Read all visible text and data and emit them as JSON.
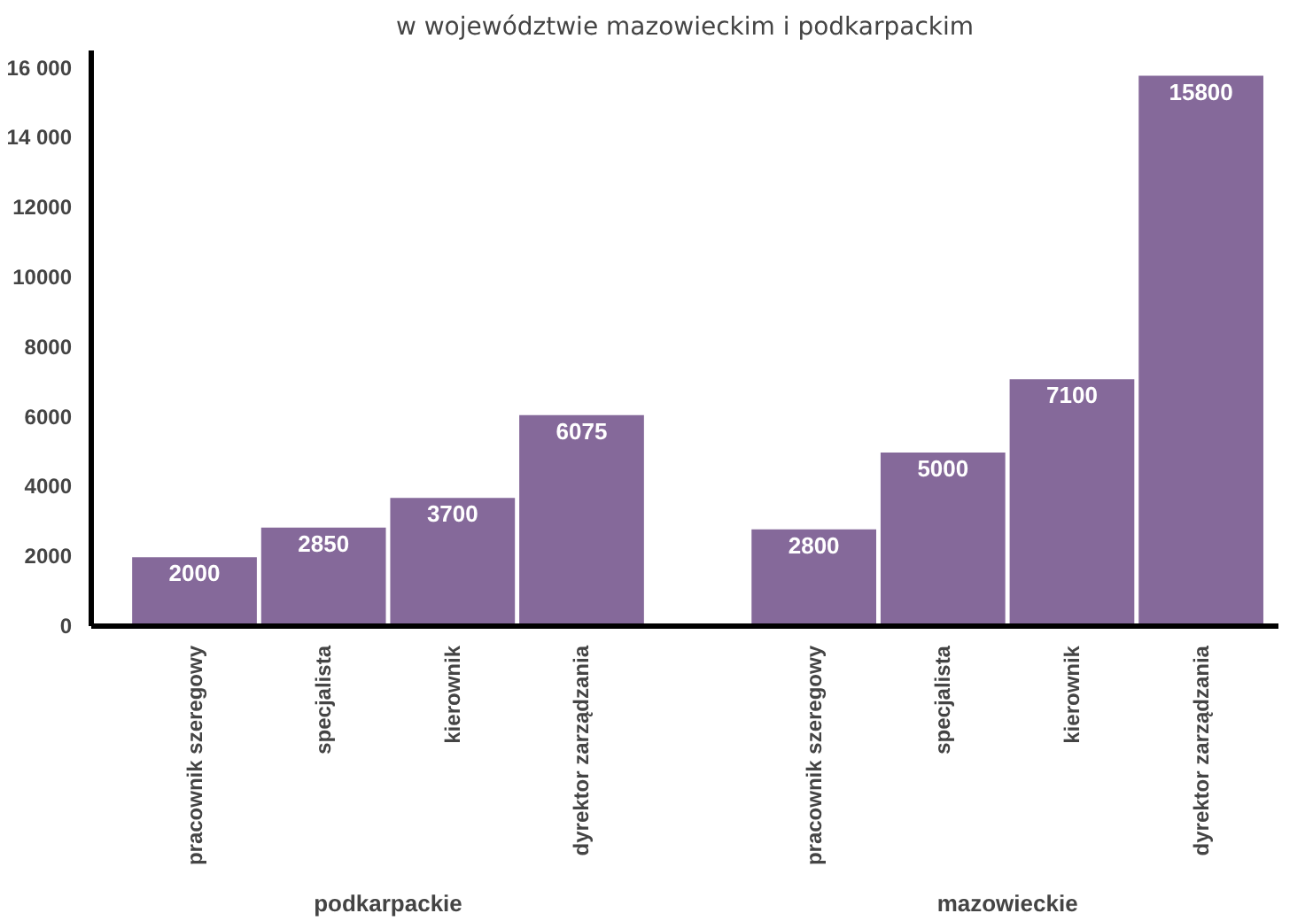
{
  "chart_data": {
    "type": "bar",
    "title": "w województwie mazowieckim i podkarpackim",
    "categories": [
      "pracownik szeregowy",
      "specjalista",
      "kierownik",
      "dyrektor zarządzania",
      "pracownik szeregowy",
      "specjalista",
      "kierownik",
      "dyrektor zarządzania"
    ],
    "values": [
      2000,
      2850,
      3700,
      6075,
      2800,
      5000,
      7100,
      15800
    ],
    "color": "#85699a",
    "data_labels": true,
    "ylim": [
      0,
      16500
    ],
    "yticks": [
      0,
      2000,
      4000,
      6000,
      8000,
      10000,
      12000,
      {
        "value": 14000,
        "label": "14 000"
      },
      {
        "value": 16000,
        "label": "16 000"
      }
    ],
    "annotations": [
      "podkarpackie",
      "mazowieckie"
    ],
    "grid": false
  }
}
